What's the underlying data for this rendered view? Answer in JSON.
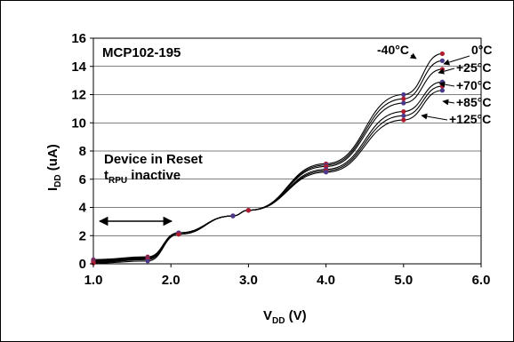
{
  "chart_data": {
    "type": "line",
    "title": "MCP102-195",
    "xlabel": "V",
    "xlabel_sub": "DD",
    "xlabel_unit": " (V)",
    "ylabel": "I",
    "ylabel_sub": "DD",
    "ylabel_unit": " (uA)",
    "xlim": [
      1.0,
      6.0
    ],
    "ylim": [
      0,
      16
    ],
    "xticks": [
      "1.0",
      "2.0",
      "3.0",
      "4.0",
      "5.0",
      "6.0"
    ],
    "yticks": [
      "0",
      "2",
      "4",
      "6",
      "8",
      "10",
      "12",
      "14",
      "16"
    ],
    "grid": "horizontal",
    "annotations": {
      "reset_line1": "Device in Reset",
      "reset_line2_main": "t",
      "reset_line2_sub": "RPU",
      "reset_line2_rest": " inactive"
    },
    "series": [
      {
        "name": "-40°C",
        "x": [
          1.0,
          1.7,
          2.1,
          2.8,
          3.0,
          4.0,
          5.0,
          5.5
        ],
        "y": [
          0.3,
          0.5,
          2.2,
          3.4,
          3.8,
          7.1,
          12.0,
          14.9
        ]
      },
      {
        "name": "0°C",
        "x": [
          1.0,
          1.7,
          2.1,
          2.8,
          3.0,
          4.0,
          5.0,
          5.5
        ],
        "y": [
          0.25,
          0.45,
          2.2,
          3.4,
          3.8,
          7.0,
          11.7,
          14.4
        ]
      },
      {
        "name": "+25°C",
        "x": [
          1.0,
          1.7,
          2.1,
          2.8,
          3.0,
          4.0,
          5.0,
          5.5
        ],
        "y": [
          0.2,
          0.4,
          2.2,
          3.4,
          3.8,
          6.9,
          11.4,
          13.8
        ]
      },
      {
        "name": "+70°C",
        "x": [
          1.0,
          1.7,
          2.1,
          2.8,
          3.0,
          4.0,
          5.0,
          5.5
        ],
        "y": [
          0.15,
          0.35,
          2.1,
          3.4,
          3.8,
          6.7,
          10.8,
          12.9
        ]
      },
      {
        "name": "+85°C",
        "x": [
          1.0,
          1.7,
          2.1,
          2.8,
          3.0,
          4.0,
          5.0,
          5.5
        ],
        "y": [
          0.1,
          0.3,
          2.1,
          3.4,
          3.8,
          6.6,
          10.5,
          12.6
        ]
      },
      {
        "name": "+125°C",
        "x": [
          1.0,
          1.7,
          2.1,
          2.8,
          3.0,
          4.0,
          5.0,
          5.5
        ],
        "y": [
          0.05,
          0.2,
          2.1,
          3.4,
          3.8,
          6.5,
          10.2,
          12.3
        ]
      }
    ],
    "colors": {
      "lines": "#000000",
      "markers": [
        "#4b3a8c",
        "#b01c2e"
      ]
    }
  }
}
